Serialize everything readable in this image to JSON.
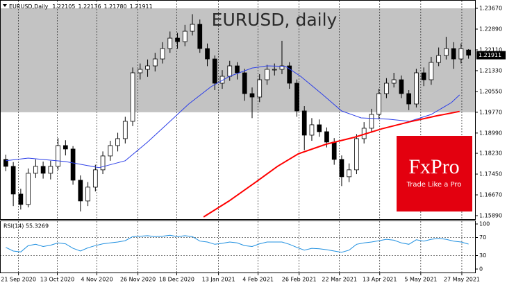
{
  "chart_data": [
    {
      "type": "candlestick",
      "title": "EURUSD, daily",
      "header_symbol": "EURUSD,Daily",
      "header_quote": [
        "1.22105",
        "1.22136",
        "1.21780",
        "1.21911"
      ],
      "logo": {
        "brand": "FxPro",
        "slogan": "Trade Like a Pro",
        "color": "#e3000f"
      },
      "open": [
        1.18,
        1.1774,
        1.167,
        1.1631,
        1.1748,
        1.1774,
        1.1748,
        1.1774,
        1.1852,
        1.1839,
        1.1722,
        1.1644,
        1.1696,
        1.1761,
        1.1813,
        1.1852,
        1.1878,
        1.1943,
        1.2125,
        1.2138,
        1.2151,
        1.2177,
        1.2216,
        1.2255,
        1.2242,
        1.2281,
        1.2307,
        1.2216,
        1.2177,
        1.2086,
        1.2112,
        1.2151,
        1.2125,
        1.2047,
        1.2034,
        1.2099,
        1.2138,
        1.2138,
        1.2151,
        1.2086,
        1.1982,
        1.1891,
        1.193,
        1.1904,
        1.1865,
        1.18,
        1.1735,
        1.1761,
        1.1878,
        1.1917,
        1.1969,
        1.2047,
        1.2086,
        1.2099,
        1.2047,
        1.2008,
        1.2125,
        1.2099,
        1.2164,
        1.219,
        1.2216,
        1.2177,
        1.22105
      ],
      "high": [
        1.1818,
        1.179,
        1.169,
        1.1766,
        1.18,
        1.1792,
        1.1795,
        1.188,
        1.1872,
        1.185,
        1.174,
        1.1715,
        1.178,
        1.183,
        1.187,
        1.19,
        1.196,
        1.2145,
        1.216,
        1.2175,
        1.22,
        1.224,
        1.228,
        1.2275,
        1.2305,
        1.2345,
        1.2325,
        1.2235,
        1.219,
        1.2135,
        1.217,
        1.2165,
        1.214,
        1.207,
        1.212,
        1.2155,
        1.216,
        1.2245,
        1.2165,
        1.21,
        1.2,
        1.1955,
        1.195,
        1.192,
        1.188,
        1.1815,
        1.1785,
        1.1895,
        1.194,
        1.199,
        1.2065,
        1.2105,
        1.2125,
        1.2115,
        1.206,
        1.214,
        1.2145,
        1.2185,
        1.222,
        1.226,
        1.224,
        1.2235,
        1.22136
      ],
      "low": [
        1.1756,
        1.1625,
        1.1612,
        1.162,
        1.173,
        1.1728,
        1.1725,
        1.176,
        1.1815,
        1.1705,
        1.1605,
        1.1625,
        1.168,
        1.1745,
        1.1795,
        1.183,
        1.186,
        1.1925,
        1.21,
        1.211,
        1.213,
        1.216,
        1.22,
        1.2215,
        1.2225,
        1.2265,
        1.22,
        1.215,
        1.206,
        1.2065,
        1.2095,
        1.21,
        1.202,
        1.1955,
        1.2015,
        1.208,
        1.2115,
        1.212,
        1.2065,
        1.196,
        1.1835,
        1.187,
        1.1885,
        1.1845,
        1.178,
        1.17,
        1.1715,
        1.1745,
        1.186,
        1.19,
        1.195,
        1.203,
        1.207,
        1.203,
        1.1985,
        1.1995,
        1.2075,
        1.208,
        1.215,
        1.2175,
        1.214,
        1.216,
        1.2178
      ],
      "close": [
        1.1774,
        1.167,
        1.1631,
        1.1748,
        1.1774,
        1.1748,
        1.1774,
        1.1852,
        1.1839,
        1.1722,
        1.1644,
        1.1696,
        1.1761,
        1.1813,
        1.1852,
        1.1878,
        1.1943,
        1.2125,
        1.2138,
        1.2151,
        1.2177,
        1.2216,
        1.2255,
        1.2242,
        1.2281,
        1.2307,
        1.2216,
        1.2177,
        1.2086,
        1.2112,
        1.2151,
        1.2125,
        1.2047,
        1.2034,
        1.2099,
        1.2138,
        1.2138,
        1.2151,
        1.2086,
        1.1982,
        1.1891,
        1.193,
        1.1904,
        1.1865,
        1.18,
        1.1735,
        1.1761,
        1.1878,
        1.1917,
        1.1969,
        1.2047,
        1.2086,
        1.2099,
        1.2047,
        1.2008,
        1.2125,
        1.2099,
        1.2164,
        1.219,
        1.2216,
        1.2177,
        1.2216,
        1.21911
      ],
      "up_color": "#ffffff",
      "down_color": "#000000",
      "lines": [
        {
          "color": "#2b3ee8",
          "x": [
            0,
            3,
            8,
            12.5,
            16,
            19,
            22,
            24.5,
            27.5,
            30,
            33,
            35,
            37.5,
            39.5,
            42.3,
            45,
            47.6,
            51.3,
            54.1,
            57,
            59.7,
            60.8
          ],
          "values": [
            1.1795,
            1.1805,
            1.1792,
            1.1769,
            1.1795,
            1.1865,
            1.1943,
            1.2008,
            1.2073,
            1.2112,
            1.2143,
            1.2151,
            1.2149,
            1.2112,
            1.2047,
            1.1982,
            1.1956,
            1.1951,
            1.1943,
            1.1969,
            1.2013,
            1.2042
          ]
        },
        {
          "color": "#ff0000",
          "x": [
            26.5,
            29.9,
            33.6,
            36.4,
            39.2,
            42.9,
            46.7,
            50.4,
            54.1,
            57.8,
            60.8
          ],
          "values": [
            1.1584,
            1.1644,
            1.1717,
            1.1774,
            1.1821,
            1.1857,
            1.1883,
            1.1915,
            1.1941,
            1.1964,
            1.198
          ]
        }
      ],
      "highlight_band": [
        1.1977,
        1.2367
      ],
      "xlim": [
        -0.5,
        62.5
      ],
      "xticks": [
        {
          "value": 1.7,
          "label": "21 Sep 2020"
        },
        {
          "value": 6.9,
          "label": "13 Oct 2020"
        },
        {
          "value": 12.2,
          "label": "4 Nov 2020"
        },
        {
          "value": 17.7,
          "label": "26 Nov 2020"
        },
        {
          "value": 22.9,
          "label": "18 Dec 2020"
        },
        {
          "value": 28.5,
          "label": "13 Jan 2021"
        },
        {
          "value": 33.8,
          "label": "4 Feb 2021"
        },
        {
          "value": 39.3,
          "label": "26 Feb 2021"
        },
        {
          "value": 44.7,
          "label": "22 Mar 2021"
        },
        {
          "value": 50.1,
          "label": "13 Apr 2021"
        },
        {
          "value": 55.6,
          "label": "5 May 2021"
        },
        {
          "value": 61.1,
          "label": "27 May 2021"
        }
      ],
      "ylim": [
        1.1589,
        1.2367
      ],
      "yticks": [
        {
          "value": 1.2367,
          "label": "1.23670"
        },
        {
          "value": 1.2289,
          "label": "1.22890"
        },
        {
          "value": 1.2211,
          "label": "1.22110"
        },
        {
          "value": 1.2133,
          "label": "1.21330"
        },
        {
          "value": 1.2055,
          "label": "1.20550"
        },
        {
          "value": 1.1977,
          "label": "1.19770"
        },
        {
          "value": 1.1899,
          "label": "1.18990"
        },
        {
          "value": 1.1823,
          "label": "1.18230"
        },
        {
          "value": 1.1745,
          "label": "1.17450"
        },
        {
          "value": 1.1667,
          "label": "1.16670"
        },
        {
          "value": 1.1589,
          "label": "1.15890"
        }
      ]
    },
    {
      "type": "line",
      "label": "RSI(14) 55.3269",
      "color": "#1e8fe0",
      "values": [
        48,
        40,
        38,
        52,
        55,
        50,
        53,
        58,
        56,
        46,
        40,
        47,
        52,
        56,
        58,
        60,
        63,
        72,
        73,
        74,
        72,
        73,
        75,
        72,
        74,
        72,
        62,
        60,
        55,
        57,
        60,
        58,
        52,
        50,
        56,
        60,
        60,
        60,
        55,
        48,
        42,
        46,
        45,
        43,
        40,
        37,
        42,
        55,
        58,
        60,
        63,
        66,
        64,
        58,
        55,
        65,
        62,
        66,
        68,
        66,
        62,
        60,
        55.3269
      ],
      "xlim": [
        -0.5,
        62.5
      ],
      "ylim": [
        0,
        100
      ],
      "yticks": [
        0,
        30,
        70,
        100
      ]
    }
  ]
}
